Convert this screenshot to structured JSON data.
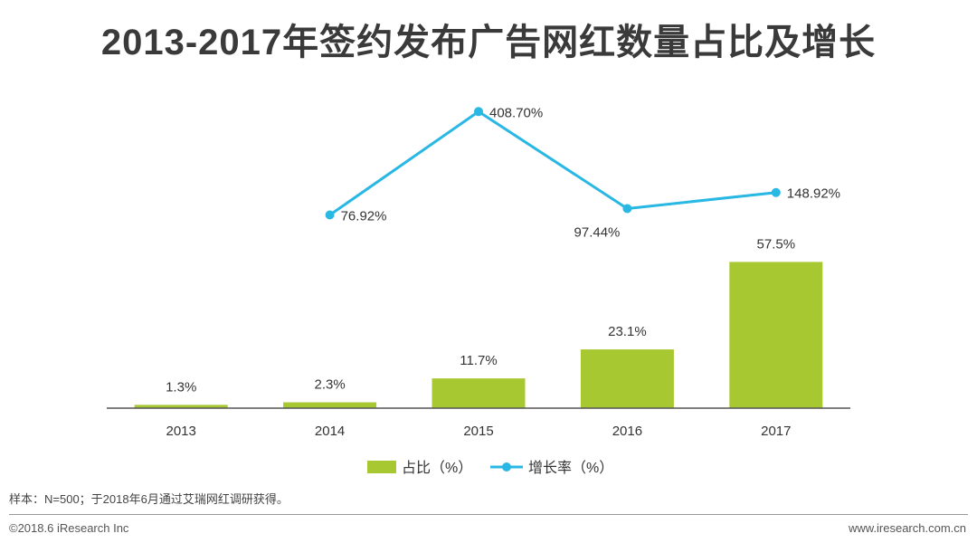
{
  "title": "2013-2017年签约发布广告网红数量占比及增长",
  "note": "样本：N=500；于2018年6月通过艾瑞网红调研获得。",
  "copyright": "©2018.6 iResearch Inc",
  "website": "www.iresearch.com.cn",
  "colors": {
    "bar": "#a8c832",
    "line": "#29b7e3",
    "axis": "#555555"
  },
  "chart_data": {
    "type": "bar+line",
    "categories": [
      "2013",
      "2014",
      "2015",
      "2016",
      "2017"
    ],
    "series": [
      {
        "name": "占比（%）",
        "type": "bar",
        "values": [
          1.3,
          2.3,
          11.7,
          23.1,
          57.5
        ],
        "labels": [
          "1.3%",
          "2.3%",
          "11.7%",
          "23.1%",
          "57.5%"
        ]
      },
      {
        "name": "增长率（%）",
        "type": "line",
        "values": [
          null,
          76.92,
          408.7,
          97.44,
          148.92
        ],
        "labels": [
          "",
          "76.92%",
          "408.70%",
          "97.44%",
          "148.92%"
        ]
      }
    ],
    "legend_position": "bottom"
  }
}
